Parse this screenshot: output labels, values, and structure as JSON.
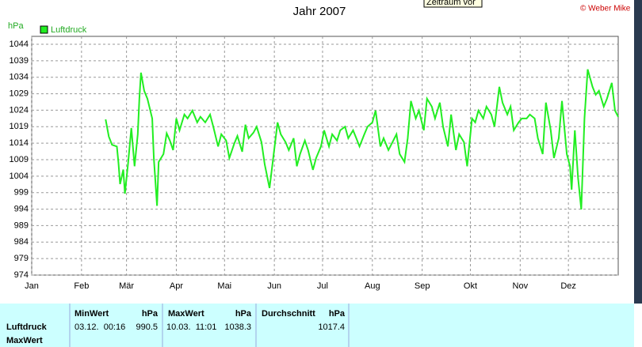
{
  "chart_data": {
    "type": "line",
    "title": "Jahr 2007",
    "y_label": "hPa",
    "x": [
      46,
      48,
      50,
      53,
      54,
      55,
      57,
      58,
      60,
      62,
      64,
      66,
      67,
      68,
      70,
      72,
      75,
      76,
      78,
      79,
      82,
      84,
      86,
      88,
      90,
      92,
      95,
      97,
      100,
      103,
      105,
      108,
      111,
      113,
      116,
      118,
      121,
      123,
      126,
      128,
      131,
      133,
      135,
      138,
      140,
      143,
      145,
      148,
      150,
      153,
      155,
      158,
      160,
      163,
      165,
      167,
      170,
      172,
      175,
      177,
      180,
      182,
      185,
      187,
      190,
      192,
      195,
      197,
      200,
      202,
      204,
      207,
      209,
      212,
      214,
      217,
      219,
      222,
      224,
      227,
      229,
      232,
      234,
      236,
      239,
      241,
      244,
      246,
      249,
      251,
      254,
      256,
      259,
      261,
      264,
      266,
      269,
      271,
      274,
      276,
      278,
      281,
      283,
      286,
      288,
      291,
      293,
      296,
      298,
      300,
      303,
      305,
      308,
      310,
      313,
      315,
      318,
      320,
      323,
      325,
      328,
      330,
      333,
      335,
      336,
      338,
      340,
      342,
      344,
      346,
      349,
      351,
      353,
      356,
      358,
      361,
      363,
      365
    ],
    "series": [
      {
        "name": "Luftdruck",
        "color": "#22ee22",
        "values": [
          1021.2,
          1016,
          1013.5,
          1013,
          1008,
          1001.6,
          1006,
          998.7,
          1008,
          1018.6,
          1007,
          1016.7,
          1027.5,
          1035.4,
          1029.9,
          1027.5,
          1021.5,
          1009.5,
          995,
          1008.3,
          1010.7,
          1017,
          1014.8,
          1011.9,
          1021.5,
          1017.9,
          1022.7,
          1021.5,
          1023.9,
          1020.3,
          1022,
          1020.3,
          1022.7,
          1019,
          1013,
          1016.7,
          1014.8,
          1009.5,
          1013.8,
          1016.2,
          1011.4,
          1019.6,
          1015.5,
          1017.2,
          1019,
          1014.3,
          1007.6,
          1000.4,
          1008.3,
          1020.3,
          1016.7,
          1014.3,
          1011.9,
          1015.5,
          1007,
          1010.7,
          1014.8,
          1011.9,
          1005.9,
          1009.5,
          1013,
          1017.9,
          1013,
          1016.7,
          1014.8,
          1017.9,
          1019,
          1015.5,
          1017.9,
          1015.5,
          1013,
          1016.7,
          1019,
          1020.3,
          1023.9,
          1013,
          1015.5,
          1011.9,
          1013.8,
          1016.7,
          1010.7,
          1008.3,
          1015.5,
          1026.8,
          1021.5,
          1023.9,
          1017.9,
          1027.5,
          1025.1,
          1021.5,
          1026.3,
          1019,
          1013,
          1022.7,
          1011.9,
          1016.7,
          1014.3,
          1007,
          1021.5,
          1020.3,
          1023.9,
          1021.5,
          1025.1,
          1022.7,
          1019,
          1031.1,
          1026.3,
          1022.7,
          1025.1,
          1017.9,
          1020.3,
          1021.5,
          1021.5,
          1022.7,
          1021.5,
          1015.5,
          1010.7,
          1026.3,
          1017.9,
          1009.5,
          1015.5,
          1026.8,
          1010.7,
          1007,
          999.9,
          1017.9,
          1003.5,
          993.9,
          1021.5,
          1036.4,
          1031.1,
          1028.7,
          1029.9,
          1025.1,
          1027.5,
          1032.3,
          1023.9,
          1022
        ]
      }
    ],
    "xlim": [
      0,
      365
    ],
    "xticks": [
      {
        "value": 0,
        "label": "Jan"
      },
      {
        "value": 31,
        "label": "Feb"
      },
      {
        "value": 59,
        "label": "Mär"
      },
      {
        "value": 90,
        "label": "Apr"
      },
      {
        "value": 120,
        "label": "Mai"
      },
      {
        "value": 151,
        "label": "Jun"
      },
      {
        "value": 181,
        "label": "Jul"
      },
      {
        "value": 212,
        "label": "Aug"
      },
      {
        "value": 243,
        "label": "Sep"
      },
      {
        "value": 273,
        "label": "Okt"
      },
      {
        "value": 304,
        "label": "Nov"
      },
      {
        "value": 334,
        "label": "Dez"
      }
    ],
    "ylim": [
      974,
      1044
    ],
    "yticks": [
      974,
      979,
      984,
      989,
      994,
      999,
      1004,
      1009,
      1014,
      1019,
      1024,
      1029,
      1034,
      1039,
      1044
    ],
    "grid": true,
    "legend": "top-left"
  },
  "header": {
    "tooltip": "Zeitraum vor",
    "copyright": "© Weber Mike"
  },
  "table": {
    "headers": [
      "MinWert",
      "hPa",
      "MaxWert",
      "hPa",
      "Durchschnitt",
      "hPa"
    ],
    "rows": [
      [
        "Luftdruck",
        "03.12.  00:16",
        990.5,
        "10.03.  11:01",
        1038.3,
        1017.4
      ],
      [
        "MaxWert"
      ]
    ]
  }
}
